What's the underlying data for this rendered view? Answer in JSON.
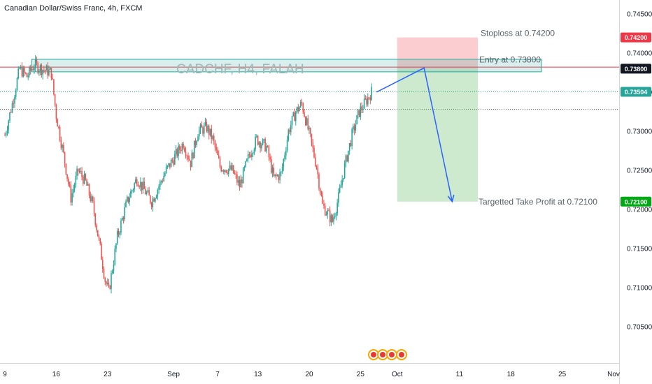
{
  "header": {
    "title": "Canadian Dollar/Swiss Franc, 4h, FXCM"
  },
  "watermark": "CADCHF, H4, FALAH",
  "annotations": {
    "stoploss": "Stoploss at 0.74200",
    "entry": "Entry at 0.73800",
    "target": "Targetted Take Profit at 0.72100"
  },
  "price_tags": [
    {
      "label": "0.74200",
      "value": 0.742,
      "color": "#f23645"
    },
    {
      "label": "0.73800",
      "value": 0.738,
      "color": "#131722"
    },
    {
      "label": "0.73504",
      "value": 0.73504,
      "color": "#26a69a"
    },
    {
      "label": "0.72100",
      "value": 0.721,
      "color": "#00a814"
    }
  ],
  "chart_data": {
    "type": "candlestick",
    "y_axis": {
      "ticks": [
        "0.74500",
        "0.74000",
        "0.73500",
        "0.73000",
        "0.72500",
        "0.72000",
        "0.71500",
        "0.71000",
        "0.70500"
      ],
      "ylim": [
        0.7005,
        0.7475
      ]
    },
    "x_axis": {
      "ticks": [
        {
          "label": "9",
          "bar": 0
        },
        {
          "label": "16",
          "bar": 42
        },
        {
          "label": "23",
          "bar": 84
        },
        {
          "label": "Sep",
          "bar": 138
        },
        {
          "label": "7",
          "bar": 174
        },
        {
          "label": "13",
          "bar": 207
        },
        {
          "label": "20",
          "bar": 249
        },
        {
          "label": "25",
          "bar": 291
        },
        {
          "label": "Oct",
          "bar": 321
        },
        {
          "label": "11",
          "bar": 372
        },
        {
          "label": "18",
          "bar": 414
        },
        {
          "label": "25",
          "bar": 456
        },
        {
          "label": "Nov",
          "bar": 498
        }
      ]
    },
    "close_anchors": [
      [
        0,
        0.7295
      ],
      [
        6,
        0.7335
      ],
      [
        12,
        0.738
      ],
      [
        18,
        0.737
      ],
      [
        24,
        0.7385
      ],
      [
        30,
        0.738
      ],
      [
        38,
        0.7375
      ],
      [
        42,
        0.732
      ],
      [
        48,
        0.727
      ],
      [
        54,
        0.7215
      ],
      [
        60,
        0.725
      ],
      [
        66,
        0.7235
      ],
      [
        72,
        0.7205
      ],
      [
        78,
        0.715
      ],
      [
        82,
        0.711
      ],
      [
        85,
        0.7095
      ],
      [
        92,
        0.7165
      ],
      [
        100,
        0.721
      ],
      [
        108,
        0.724
      ],
      [
        114,
        0.7225
      ],
      [
        120,
        0.721
      ],
      [
        126,
        0.723
      ],
      [
        132,
        0.725
      ],
      [
        138,
        0.7265
      ],
      [
        146,
        0.7285
      ],
      [
        152,
        0.726
      ],
      [
        158,
        0.73
      ],
      [
        165,
        0.7305
      ],
      [
        170,
        0.729
      ],
      [
        176,
        0.7255
      ],
      [
        186,
        0.725
      ],
      [
        192,
        0.723
      ],
      [
        200,
        0.727
      ],
      [
        206,
        0.729
      ],
      [
        214,
        0.728
      ],
      [
        220,
        0.724
      ],
      [
        226,
        0.7245
      ],
      [
        232,
        0.73
      ],
      [
        238,
        0.7325
      ],
      [
        243,
        0.7335
      ],
      [
        250,
        0.729
      ],
      [
        255,
        0.7255
      ],
      [
        260,
        0.7205
      ],
      [
        264,
        0.7195
      ],
      [
        268,
        0.7185
      ],
      [
        273,
        0.7215
      ],
      [
        278,
        0.7255
      ],
      [
        284,
        0.7295
      ],
      [
        290,
        0.7325
      ],
      [
        296,
        0.734
      ],
      [
        300,
        0.735
      ]
    ],
    "levels": {
      "stoploss": 0.742,
      "entry": 0.738,
      "take_profit": 0.721,
      "last_price": 0.73504,
      "resistance_zone": [
        0.7376,
        0.7392
      ],
      "horizontal_line": 0.7382,
      "dotted_line": 0.7328
    },
    "trade_box": {
      "start_bar": 321,
      "end_bar": 387
    },
    "projection": [
      [
        304,
        0.735
      ],
      [
        343,
        0.7381
      ],
      [
        366,
        0.721
      ]
    ],
    "last_bar": 300
  }
}
